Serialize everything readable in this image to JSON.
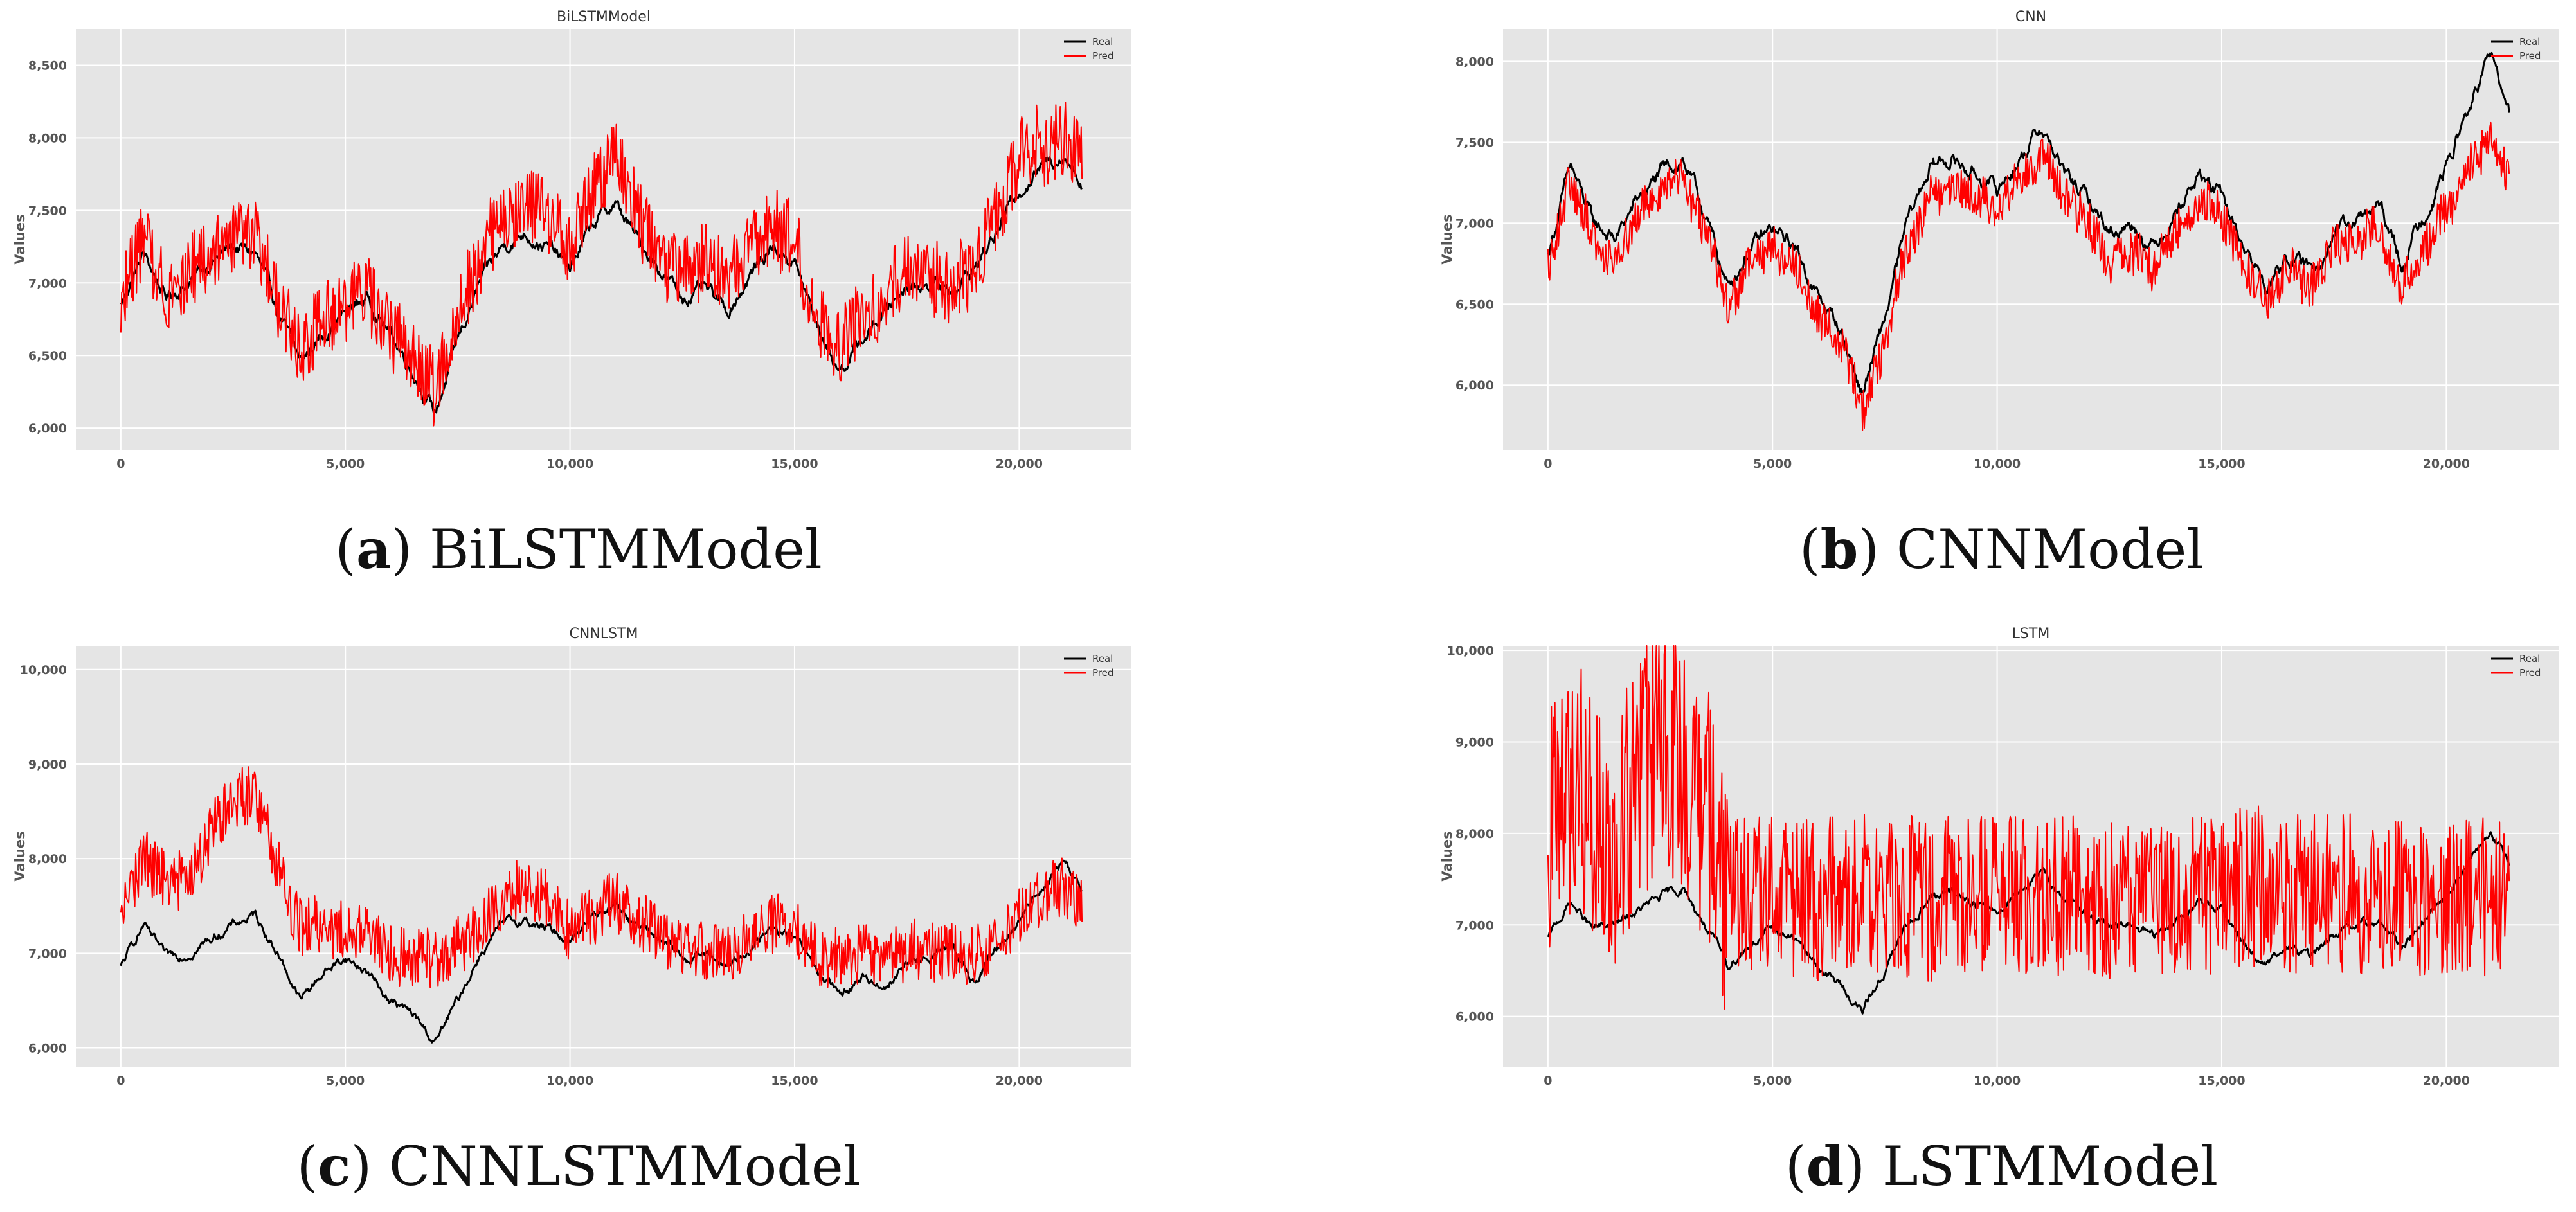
{
  "colors": {
    "plot_bg": "#e5e5e5",
    "grid": "#ffffff",
    "real": "#000000",
    "pred": "#ff0000"
  },
  "chart_data": [
    {
      "type": "line",
      "title": "BiLSTMModel",
      "caption_letter": "a",
      "caption_text": "BiLSTMModel",
      "ylabel": "Values",
      "xlim": [
        -1000,
        22500
      ],
      "ylim": [
        5850,
        8750
      ],
      "xticks": [
        0,
        5000,
        10000,
        15000,
        20000
      ],
      "xtick_labels": [
        "0",
        "5,000",
        "10,000",
        "15,000",
        "20,000"
      ],
      "yticks": [
        6000,
        6500,
        7000,
        7500,
        8000,
        8500
      ],
      "ytick_labels": [
        "6,000",
        "6,500",
        "7,000",
        "7,500",
        "8,000",
        "8,500"
      ],
      "legend_position": "top-right",
      "x": [
        0,
        500,
        1000,
        1500,
        2000,
        2500,
        3000,
        3500,
        4000,
        4500,
        5000,
        5500,
        6000,
        6500,
        7000,
        7500,
        8000,
        8500,
        9000,
        9500,
        10000,
        10500,
        11000,
        11500,
        12000,
        12500,
        13000,
        13500,
        14000,
        14500,
        15000,
        15500,
        16000,
        16500,
        17000,
        17500,
        18000,
        18500,
        19000,
        19500,
        20000,
        20500,
        21000,
        21400
      ],
      "series": [
        {
          "name": "Real",
          "noise": 0,
          "values": [
            6850,
            7200,
            6900,
            7000,
            7150,
            7250,
            7200,
            6800,
            6450,
            6650,
            6800,
            6900,
            6650,
            6400,
            6100,
            6600,
            7000,
            7250,
            7350,
            7250,
            7100,
            7400,
            7550,
            7300,
            7100,
            6900,
            6950,
            6800,
            7050,
            7250,
            7150,
            6700,
            6400,
            6600,
            6800,
            7000,
            7000,
            6950,
            7100,
            7350,
            7650,
            7800,
            7900,
            7700
          ]
        },
        {
          "name": "Pred",
          "noise": 260,
          "values": [
            6900,
            7300,
            6950,
            7050,
            7200,
            7350,
            7300,
            6850,
            6500,
            6750,
            6850,
            6950,
            6700,
            6450,
            6250,
            6800,
            7200,
            7450,
            7550,
            7450,
            7250,
            7600,
            7900,
            7500,
            7200,
            7050,
            7150,
            7000,
            7200,
            7400,
            7250,
            6750,
            6550,
            6750,
            6850,
            7100,
            7050,
            6950,
            7150,
            7450,
            7850,
            7950,
            8000,
            7800
          ]
        }
      ]
    },
    {
      "type": "line",
      "title": "CNN",
      "caption_letter": "b",
      "caption_text": "CNNModel",
      "ylabel": "Values",
      "xlim": [
        -1000,
        22500
      ],
      "ylim": [
        5600,
        8200
      ],
      "xticks": [
        0,
        5000,
        10000,
        15000,
        20000
      ],
      "xtick_labels": [
        "0",
        "5,000",
        "10,000",
        "15,000",
        "20,000"
      ],
      "yticks": [
        6000,
        6500,
        7000,
        7500,
        8000
      ],
      "ytick_labels": [
        "6,000",
        "6,500",
        "7,000",
        "7,500",
        "8,000"
      ],
      "legend_position": "top-right",
      "x": [
        0,
        500,
        1000,
        1500,
        2000,
        2500,
        3000,
        3500,
        4000,
        4500,
        5000,
        5500,
        6000,
        6500,
        7000,
        7500,
        8000,
        8500,
        9000,
        9500,
        10000,
        10500,
        11000,
        11500,
        12000,
        12500,
        13000,
        13500,
        14000,
        14500,
        15000,
        15500,
        16000,
        16500,
        17000,
        17500,
        18000,
        18500,
        19000,
        19500,
        20000,
        20500,
        21000,
        21400
      ],
      "series": [
        {
          "name": "Real",
          "noise": 0,
          "values": [
            6800,
            7350,
            7000,
            6900,
            7150,
            7300,
            7400,
            7050,
            6600,
            6850,
            6950,
            6850,
            6550,
            6350,
            5950,
            6400,
            7000,
            7350,
            7400,
            7300,
            7200,
            7400,
            7600,
            7300,
            7150,
            6950,
            7000,
            6850,
            7100,
            7300,
            7150,
            6850,
            6600,
            6800,
            6700,
            6950,
            7000,
            7100,
            6750,
            7050,
            7350,
            7700,
            8050,
            7650
          ]
        },
        {
          "name": "Pred",
          "noise": 130,
          "values": [
            6750,
            7250,
            6900,
            6800,
            7050,
            7200,
            7300,
            6950,
            6500,
            6750,
            6850,
            6750,
            6450,
            6250,
            5850,
            6250,
            6850,
            7150,
            7250,
            7150,
            7100,
            7250,
            7450,
            7150,
            7000,
            6800,
            6850,
            6700,
            6950,
            7150,
            7050,
            6750,
            6500,
            6700,
            6600,
            6850,
            6900,
            7000,
            6600,
            6850,
            7050,
            7300,
            7500,
            7250
          ]
        }
      ]
    },
    {
      "type": "line",
      "title": "CNNLSTM",
      "caption_letter": "c",
      "caption_text": "CNNLSTMModel",
      "ylabel": "Values",
      "xlim": [
        -1000,
        22500
      ],
      "ylim": [
        5800,
        10250
      ],
      "xticks": [
        0,
        5000,
        10000,
        15000,
        20000
      ],
      "xtick_labels": [
        "0",
        "5,000",
        "10,000",
        "15,000",
        "20,000"
      ],
      "yticks": [
        6000,
        7000,
        8000,
        9000,
        10000
      ],
      "ytick_labels": [
        "6,000",
        "7,000",
        "8,000",
        "9,000",
        "10,000"
      ],
      "legend_position": "top-right",
      "x": [
        0,
        500,
        1000,
        1500,
        2000,
        2500,
        3000,
        3500,
        4000,
        4500,
        5000,
        5500,
        6000,
        6500,
        7000,
        7500,
        8000,
        8500,
        9000,
        9500,
        10000,
        10500,
        11000,
        11500,
        12000,
        12500,
        13000,
        13500,
        14000,
        14500,
        15000,
        15500,
        16000,
        16500,
        17000,
        17500,
        18000,
        18500,
        19000,
        19500,
        20000,
        20500,
        21000,
        21400
      ],
      "series": [
        {
          "name": "Real",
          "noise": 0,
          "values": [
            6850,
            7300,
            6950,
            7000,
            7150,
            7300,
            7400,
            7000,
            6500,
            6800,
            6950,
            6800,
            6500,
            6350,
            6050,
            6500,
            7000,
            7300,
            7350,
            7250,
            7150,
            7400,
            7550,
            7300,
            7150,
            6950,
            7000,
            6850,
            7050,
            7250,
            7150,
            6800,
            6550,
            6750,
            6650,
            6900,
            6950,
            7050,
            6700,
            7050,
            7350,
            7700,
            8000,
            7650
          ]
        },
        {
          "name": "Pred",
          "noise": 320,
          "values": [
            7350,
            8000,
            7800,
            7700,
            8300,
            8600,
            8700,
            7900,
            7250,
            7300,
            7250,
            7200,
            7000,
            6950,
            6950,
            7050,
            7300,
            7550,
            7700,
            7600,
            7200,
            7400,
            7550,
            7350,
            7200,
            7000,
            7050,
            6950,
            7100,
            7300,
            7250,
            6950,
            6900,
            7000,
            6950,
            7000,
            7000,
            7050,
            6950,
            7100,
            7350,
            7600,
            7700,
            7550
          ]
        }
      ]
    },
    {
      "type": "line",
      "title": "LSTM",
      "caption_letter": "d",
      "caption_text": "LSTMModel",
      "ylabel": "Values",
      "xlim": [
        -1000,
        22500
      ],
      "ylim": [
        5450,
        10050
      ],
      "xticks": [
        0,
        5000,
        10000,
        15000,
        20000
      ],
      "xtick_labels": [
        "0",
        "5,000",
        "10,000",
        "15,000",
        "20,000"
      ],
      "yticks": [
        6000,
        7000,
        8000,
        9000,
        10000
      ],
      "ytick_labels": [
        "6,000",
        "7,000",
        "8,000",
        "9,000",
        "10,000"
      ],
      "legend_position": "top-right",
      "x": [
        0,
        500,
        1000,
        1500,
        2000,
        2500,
        3000,
        3500,
        4000,
        4500,
        5000,
        5500,
        6000,
        6500,
        7000,
        7500,
        8000,
        8500,
        9000,
        9500,
        10000,
        10500,
        11000,
        11500,
        12000,
        12500,
        13000,
        13500,
        14000,
        14500,
        15000,
        15500,
        16000,
        16500,
        17000,
        17500,
        18000,
        18500,
        19000,
        19500,
        20000,
        20500,
        21000,
        21400
      ],
      "series": [
        {
          "name": "Real",
          "noise": 0,
          "values": [
            6850,
            7250,
            6950,
            7000,
            7150,
            7300,
            7400,
            7000,
            6550,
            6800,
            6950,
            6850,
            6550,
            6350,
            6050,
            6500,
            7000,
            7300,
            7350,
            7250,
            7150,
            7400,
            7550,
            7300,
            7150,
            6950,
            7000,
            6850,
            7050,
            7250,
            7150,
            6800,
            6550,
            6750,
            6650,
            6900,
            6950,
            7050,
            6750,
            7050,
            7350,
            7700,
            8000,
            7650
          ]
        },
        {
          "name": "Pred",
          "noise": 900,
          "values": [
            8000,
            8400,
            8300,
            7800,
            8700,
            8800,
            8600,
            8200,
            7400,
            7350,
            7300,
            7300,
            7300,
            7300,
            7300,
            7300,
            7300,
            7300,
            7300,
            7350,
            7300,
            7350,
            7350,
            7300,
            7300,
            7300,
            7350,
            7300,
            7300,
            7350,
            7350,
            7400,
            7400,
            7350,
            7400,
            7400,
            7300,
            7300,
            7300,
            7300,
            7350,
            7350,
            7350,
            7350
          ]
        }
      ]
    }
  ]
}
